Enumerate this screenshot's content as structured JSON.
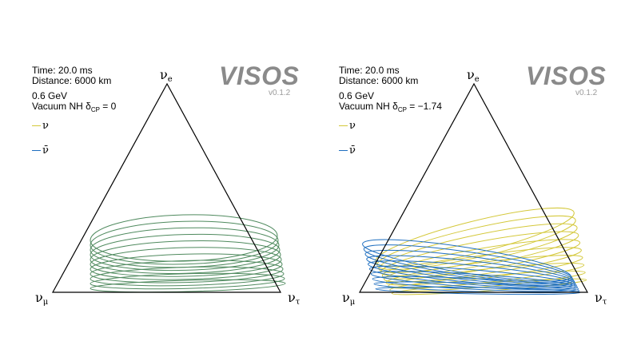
{
  "panels": [
    {
      "time": "Time: 20.0 ms",
      "distance": "Distance: 6000 km",
      "energy": "0.6 GeV",
      "mode": "Vacuum NH δ",
      "cp_sub": "CP",
      "cp_value": " = 0",
      "brand": "VISOS",
      "version": "v0.1.2",
      "legend_nu": "ν",
      "legend_nubar": "ν̄",
      "vertex_top": "ν",
      "vertex_top_sub": "e",
      "vertex_left": "ν",
      "vertex_left_sub": "μ",
      "vertex_right": "ν",
      "vertex_right_sub": "τ",
      "nu_color": "#d4c83a",
      "nubar_color": "#1f6fc0",
      "overlap_color": "#4f8a5e",
      "delta_cp": 0
    },
    {
      "time": "Time: 20.0 ms",
      "distance": "Distance: 6000 km",
      "energy": "0.6 GeV",
      "mode": "Vacuum NH δ",
      "cp_sub": "CP",
      "cp_value": " = −1.74",
      "brand": "VISOS",
      "version": "v0.1.2",
      "legend_nu": "ν",
      "legend_nubar": "ν̄",
      "vertex_top": "ν",
      "vertex_top_sub": "e",
      "vertex_left": "ν",
      "vertex_left_sub": "μ",
      "vertex_right": "ν",
      "vertex_right_sub": "τ",
      "nu_color": "#d4c83a",
      "nubar_color": "#1f6fc0",
      "overlap_color": "#4f8a5e",
      "delta_cp": -1.74
    }
  ]
}
